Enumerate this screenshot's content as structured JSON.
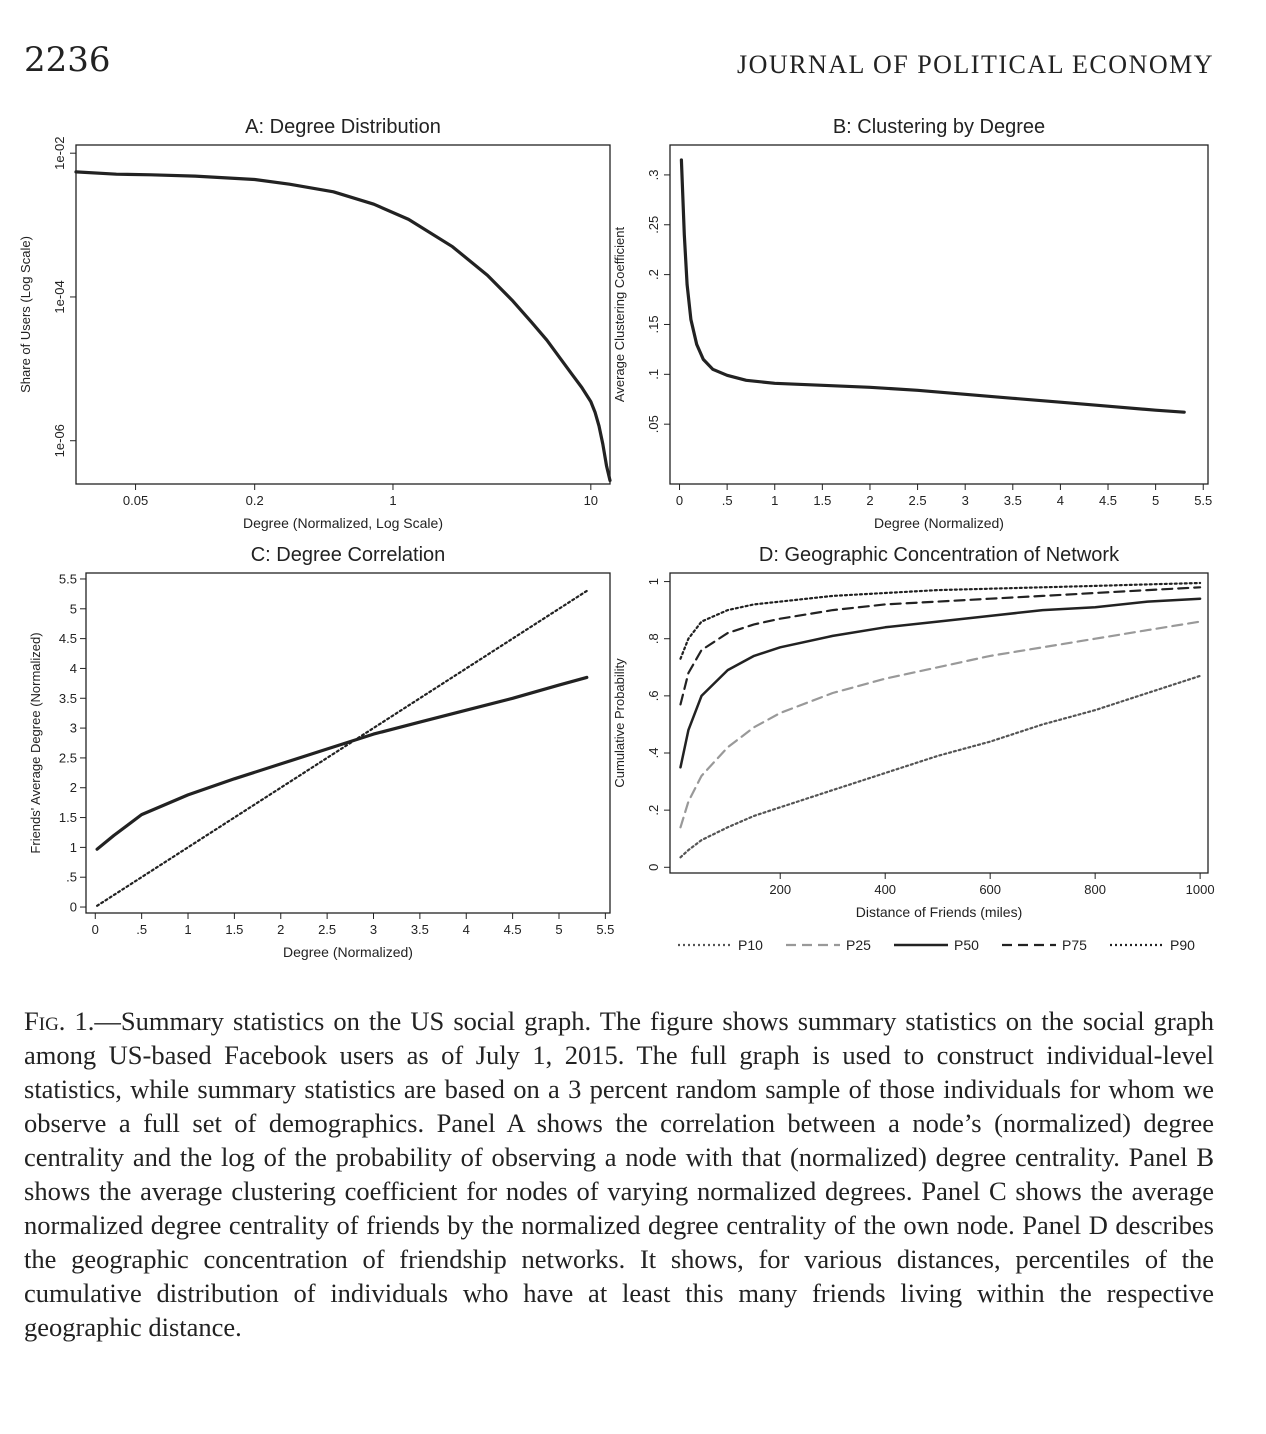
{
  "header": {
    "page_number": "2236",
    "journal": "JOURNAL OF POLITICAL ECONOMY"
  },
  "chart_data": [
    {
      "id": "A",
      "type": "line",
      "title": "A: Degree Distribution",
      "xlabel": "Degree (Normalized, Log Scale)",
      "ylabel": "Share of Users (Log Scale)",
      "xscale": "log",
      "yscale": "log",
      "xticks": [
        0.05,
        0.2,
        1,
        10
      ],
      "xtick_labels": [
        "0.05",
        "0.2",
        "1",
        "10"
      ],
      "yticks": [
        0.01,
        0.0001,
        1e-06
      ],
      "ytick_labels": [
        "1e-02",
        "1e-04",
        "1e-06"
      ],
      "xlim": [
        0.025,
        12.5
      ],
      "ylim": [
        2.5e-07,
        0.013
      ],
      "series": [
        {
          "x": [
            0.025,
            0.04,
            0.06,
            0.1,
            0.2,
            0.3,
            0.5,
            0.8,
            1.2,
            2,
            3,
            4,
            5,
            6,
            7,
            8,
            9,
            10,
            10.5,
            11,
            11.5,
            12,
            12.5
          ],
          "y": [
            0.0055,
            0.0051,
            0.005,
            0.0048,
            0.0043,
            0.0037,
            0.0029,
            0.00195,
            0.0012,
            0.0005,
            0.0002,
            9e-05,
            4.5e-05,
            2.5e-05,
            1.4e-05,
            8.5e-06,
            5.5e-06,
            3.5e-06,
            2.5e-06,
            1.6e-06,
            9e-07,
            4.5e-07,
            2.8e-07
          ]
        }
      ]
    },
    {
      "id": "B",
      "type": "line",
      "title": "B: Clustering by Degree",
      "xlabel": "Degree (Normalized)",
      "ylabel": "Average Clustering Coefficient",
      "xticks": [
        0,
        0.5,
        1,
        1.5,
        2,
        2.5,
        3,
        3.5,
        4,
        4.5,
        5,
        5.5
      ],
      "xtick_labels": [
        "0",
        ".5",
        "1",
        "1.5",
        "2",
        "2.5",
        "3",
        "3.5",
        "4",
        "4.5",
        "5",
        "5.5"
      ],
      "yticks": [
        0.05,
        0.1,
        0.15,
        0.2,
        0.25,
        0.3
      ],
      "ytick_labels": [
        ".05",
        ".1",
        ".15",
        ".2",
        ".25",
        ".3"
      ],
      "xlim": [
        -0.1,
        5.55
      ],
      "ylim": [
        -0.01,
        0.33
      ],
      "series": [
        {
          "x": [
            0.02,
            0.05,
            0.08,
            0.12,
            0.18,
            0.25,
            0.35,
            0.5,
            0.7,
            1,
            1.5,
            2,
            2.5,
            3,
            3.5,
            4,
            4.5,
            5,
            5.3
          ],
          "y": [
            0.315,
            0.24,
            0.19,
            0.155,
            0.13,
            0.115,
            0.105,
            0.099,
            0.094,
            0.091,
            0.089,
            0.087,
            0.084,
            0.08,
            0.076,
            0.072,
            0.068,
            0.064,
            0.062
          ]
        }
      ]
    },
    {
      "id": "C",
      "type": "line",
      "title": "C: Degree Correlation",
      "xlabel": "Degree (Normalized)",
      "ylabel": "Friends' Average Degree (Normalized)",
      "xticks": [
        0,
        0.5,
        1,
        1.5,
        2,
        2.5,
        3,
        3.5,
        4,
        4.5,
        5,
        5.5
      ],
      "xtick_labels": [
        "0",
        ".5",
        "1",
        "1.5",
        "2",
        "2.5",
        "3",
        "3.5",
        "4",
        "4.5",
        "5",
        "5.5"
      ],
      "yticks": [
        0,
        0.5,
        1,
        1.5,
        2,
        2.5,
        3,
        3.5,
        4,
        4.5,
        5,
        5.5
      ],
      "ytick_labels": [
        "0",
        ".5",
        "1",
        "1.5",
        "2",
        "2.5",
        "3",
        "3.5",
        "4",
        "4.5",
        "5",
        "5.5"
      ],
      "xlim": [
        -0.1,
        5.55
      ],
      "ylim": [
        -0.1,
        5.6
      ],
      "series": [
        {
          "x": [
            0.02,
            0.2,
            0.5,
            1,
            1.5,
            2,
            2.5,
            3,
            3.5,
            4,
            4.5,
            5,
            5.3
          ],
          "y": [
            0.97,
            1.2,
            1.55,
            1.88,
            2.15,
            2.4,
            2.65,
            2.9,
            3.1,
            3.3,
            3.5,
            3.72,
            3.85
          ]
        },
        {
          "style": "dotted",
          "x": [
            0.02,
            5.3
          ],
          "y": [
            0.02,
            5.3
          ]
        }
      ]
    },
    {
      "id": "D",
      "type": "line",
      "title": "D: Geographic Concentration of Network",
      "xlabel": "Distance of Friends (miles)",
      "ylabel": "Cumulative Probability",
      "xticks": [
        200,
        400,
        600,
        800,
        1000
      ],
      "xtick_labels": [
        "200",
        "400",
        "600",
        "800",
        "1000"
      ],
      "yticks": [
        0,
        0.2,
        0.4,
        0.6,
        0.8,
        1
      ],
      "ytick_labels": [
        "0",
        ".2",
        ".4",
        ".6",
        ".8",
        "1"
      ],
      "xlim": [
        -10,
        1015
      ],
      "ylim": [
        -0.02,
        1.03
      ],
      "legend": "bottom",
      "series": [
        {
          "name": "P10",
          "style": "dotted-gray",
          "x": [
            10,
            25,
            50,
            100,
            150,
            200,
            300,
            400,
            500,
            600,
            700,
            800,
            900,
            1000
          ],
          "y": [
            0.035,
            0.06,
            0.095,
            0.14,
            0.18,
            0.21,
            0.27,
            0.33,
            0.39,
            0.44,
            0.5,
            0.55,
            0.61,
            0.67
          ]
        },
        {
          "name": "P25",
          "style": "dashed-gray",
          "x": [
            10,
            25,
            50,
            100,
            150,
            200,
            300,
            400,
            500,
            600,
            700,
            800,
            900,
            1000
          ],
          "y": [
            0.14,
            0.23,
            0.32,
            0.42,
            0.49,
            0.54,
            0.61,
            0.66,
            0.7,
            0.74,
            0.77,
            0.8,
            0.83,
            0.86
          ]
        },
        {
          "name": "P50",
          "style": "solid",
          "x": [
            10,
            25,
            50,
            100,
            150,
            200,
            300,
            400,
            500,
            600,
            700,
            800,
            900,
            1000
          ],
          "y": [
            0.35,
            0.48,
            0.6,
            0.69,
            0.74,
            0.77,
            0.81,
            0.84,
            0.86,
            0.88,
            0.9,
            0.91,
            0.93,
            0.94
          ]
        },
        {
          "name": "P75",
          "style": "dashed",
          "x": [
            10,
            25,
            50,
            100,
            150,
            200,
            300,
            400,
            500,
            600,
            700,
            800,
            900,
            1000
          ],
          "y": [
            0.57,
            0.68,
            0.76,
            0.82,
            0.85,
            0.87,
            0.9,
            0.92,
            0.93,
            0.94,
            0.95,
            0.96,
            0.97,
            0.98
          ]
        },
        {
          "name": "P90",
          "style": "dotted",
          "x": [
            10,
            25,
            50,
            100,
            150,
            200,
            300,
            400,
            500,
            600,
            700,
            800,
            900,
            1000
          ],
          "y": [
            0.73,
            0.8,
            0.86,
            0.9,
            0.92,
            0.93,
            0.95,
            0.96,
            0.97,
            0.975,
            0.98,
            0.985,
            0.99,
            0.995
          ]
        }
      ]
    }
  ],
  "caption": {
    "label": "Fig. 1.",
    "text": "—Summary statistics on the US social graph. The figure shows summary statistics on the social graph among US-based Facebook users as of July 1, 2015. The full graph is used to construct individual-level statistics, while summary statistics are based on a 3 percent random sample of those individuals for whom we observe a full set of demographics. Panel A shows the correlation between a node’s (normalized) degree centrality and the log of the probability of observing a node with that (normalized) degree centrality. Panel B shows the average clustering coefficient for nodes of varying normalized degrees. Panel C shows the average normalized degree centrality of friends by the normalized degree centrality of the own node. Panel D describes the geographic concentration of friendship networks. It shows, for various distances, percentiles of the cumulative distribution of individuals who have at least this many friends living within the respective geographic distance."
  }
}
